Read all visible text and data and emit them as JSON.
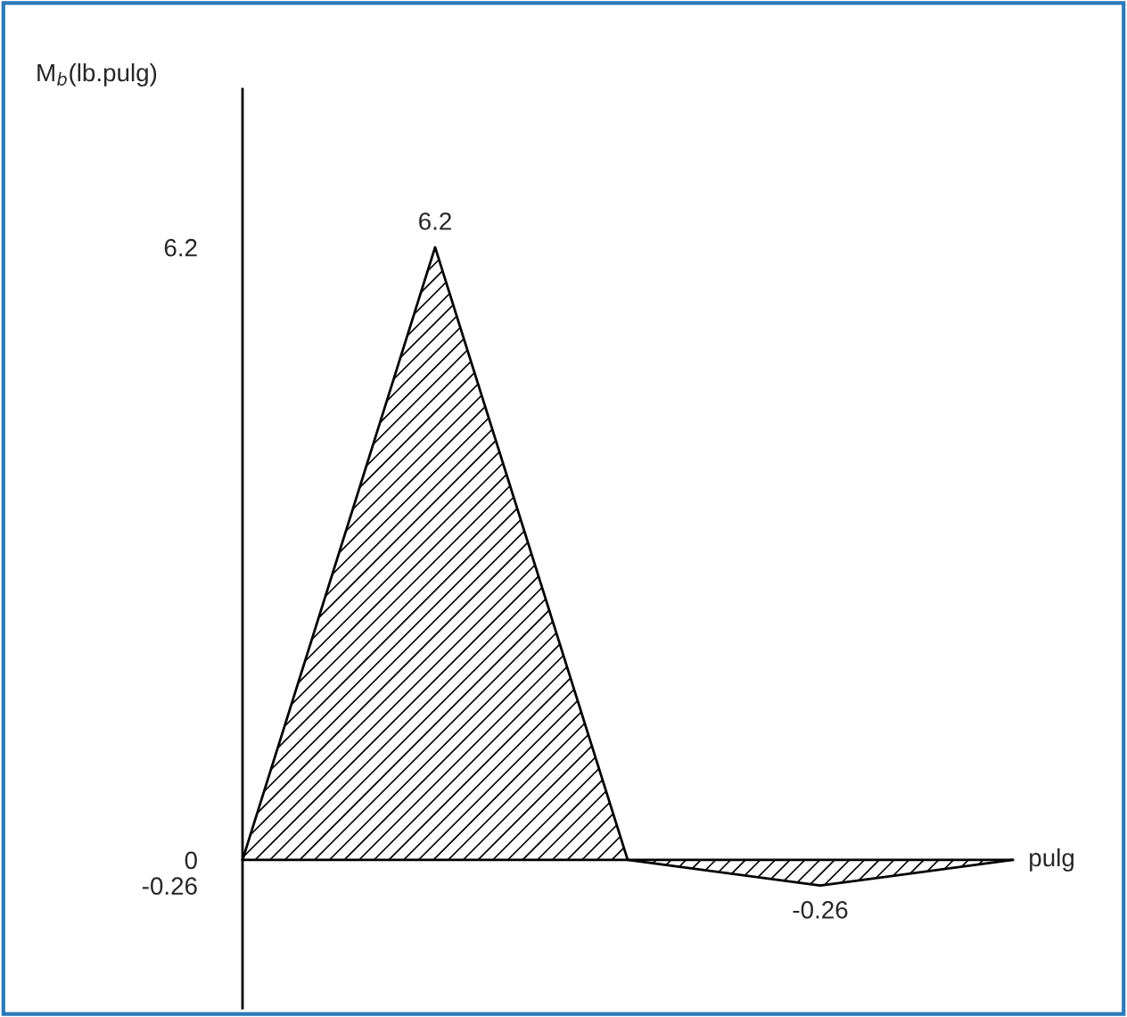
{
  "chart_data": {
    "type": "area",
    "ylabel": "M$_{b}$(lb.pulg)",
    "xlabel": "pulg",
    "categories": [
      null,
      null,
      null,
      null,
      null
    ],
    "series": [
      {
        "color": "#000000",
        "values": [
          0,
          6.2,
          0,
          -0.26,
          0
        ],
        "value_labels": [
          null,
          "6.2",
          null,
          "-0.26",
          null
        ]
      }
    ],
    "ylim": [
      -1.5,
      7.8
    ],
    "yticks": [
      -0.26,
      0,
      6.2
    ],
    "tick_labels": "y"
  }
}
